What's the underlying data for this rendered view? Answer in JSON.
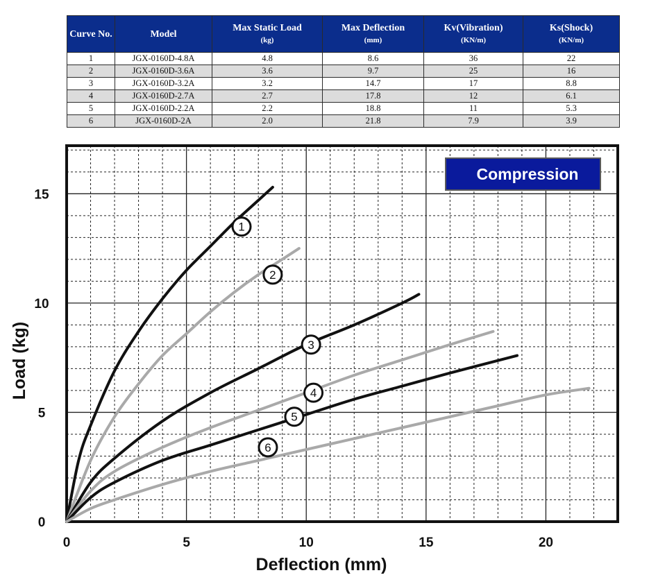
{
  "table": {
    "headers": [
      {
        "label": "Curve No.",
        "unit": ""
      },
      {
        "label": "Model",
        "unit": ""
      },
      {
        "label": "Max Static Load",
        "unit": "(kg)"
      },
      {
        "label": "Max Deflection",
        "unit": "(mm)"
      },
      {
        "label": "Kv(Vibration)",
        "unit": "(KN/m)"
      },
      {
        "label": "Ks(Shock)",
        "unit": "(KN/m)"
      }
    ],
    "rows": [
      {
        "no": "1",
        "model": "JGX-0160D-4.8A",
        "load": "4.8",
        "deflection": "8.6",
        "kv": "36",
        "ks": "22"
      },
      {
        "no": "2",
        "model": "JGX-0160D-3.6A",
        "load": "3.6",
        "deflection": "9.7",
        "kv": "25",
        "ks": "16"
      },
      {
        "no": "3",
        "model": "JGX-0160D-3.2A",
        "load": "3.2",
        "deflection": "14.7",
        "kv": "17",
        "ks": "8.8"
      },
      {
        "no": "4",
        "model": "JGX-0160D-2.7A",
        "load": "2.7",
        "deflection": "17.8",
        "kv": "12",
        "ks": "6.1"
      },
      {
        "no": "5",
        "model": "JGX-0160D-2.2A",
        "load": "2.2",
        "deflection": "18.8",
        "kv": "11",
        "ks": "5.3"
      },
      {
        "no": "6",
        "model": "JGX-0160D-2A",
        "load": "2.0",
        "deflection": "21.8",
        "kv": "7.9",
        "ks": "3.9"
      }
    ]
  },
  "chart_data": {
    "type": "line",
    "title": "Compression",
    "xlabel": "Deflection (mm)",
    "ylabel": "Load (kg)",
    "xlim": [
      0,
      23
    ],
    "ylim": [
      0,
      17.2
    ],
    "xticks": [
      0,
      5,
      10,
      15,
      20
    ],
    "yticks": [
      0,
      5,
      10,
      15
    ],
    "grid": true,
    "legend_position": "top-right",
    "colors": {
      "dark": "#111111",
      "light": "#a9a9a9",
      "title_box": "#0a1a9c"
    },
    "series": [
      {
        "name": "1",
        "color": "dark",
        "x": [
          0,
          0.5,
          1,
          2,
          3,
          4,
          5,
          6,
          7,
          8,
          8.6
        ],
        "y": [
          0,
          2.8,
          4.4,
          6.9,
          8.7,
          10.2,
          11.5,
          12.6,
          13.7,
          14.7,
          15.3
        ]
      },
      {
        "name": "2",
        "color": "light",
        "x": [
          0,
          1,
          2,
          3,
          4,
          5,
          6,
          7,
          8,
          9,
          9.7
        ],
        "y": [
          0,
          2.8,
          4.8,
          6.3,
          7.6,
          8.6,
          9.6,
          10.5,
          11.3,
          12.0,
          12.5
        ]
      },
      {
        "name": "3",
        "color": "dark",
        "x": [
          0,
          1,
          2,
          4,
          6,
          8,
          10,
          12,
          14,
          14.7
        ],
        "y": [
          0,
          1.8,
          2.9,
          4.6,
          5.9,
          7.0,
          8.1,
          9.0,
          10.0,
          10.4
        ]
      },
      {
        "name": "4",
        "color": "light",
        "x": [
          0,
          1,
          2,
          4,
          6,
          8,
          10,
          12,
          14,
          16,
          17.8
        ],
        "y": [
          0,
          1.4,
          2.3,
          3.4,
          4.3,
          5.1,
          5.9,
          6.7,
          7.4,
          8.1,
          8.7
        ]
      },
      {
        "name": "5",
        "color": "dark",
        "x": [
          0,
          1,
          2,
          4,
          6,
          8,
          10,
          12,
          14,
          16,
          18.8
        ],
        "y": [
          0,
          1.1,
          1.8,
          2.8,
          3.5,
          4.2,
          4.9,
          5.6,
          6.2,
          6.8,
          7.6
        ]
      },
      {
        "name": "6",
        "color": "light",
        "x": [
          0,
          1,
          2,
          4,
          6,
          8,
          10,
          12,
          14,
          16,
          18,
          20,
          21.8
        ],
        "y": [
          0,
          0.6,
          1.0,
          1.7,
          2.3,
          2.8,
          3.3,
          3.8,
          4.3,
          4.8,
          5.3,
          5.8,
          6.1
        ]
      }
    ],
    "markers": [
      {
        "label": "1",
        "x": 7.3,
        "y": 13.5
      },
      {
        "label": "2",
        "x": 8.6,
        "y": 11.3
      },
      {
        "label": "3",
        "x": 10.2,
        "y": 8.1
      },
      {
        "label": "4",
        "x": 10.3,
        "y": 5.9
      },
      {
        "label": "5",
        "x": 9.5,
        "y": 4.8
      },
      {
        "label": "6",
        "x": 8.4,
        "y": 3.4
      }
    ]
  }
}
